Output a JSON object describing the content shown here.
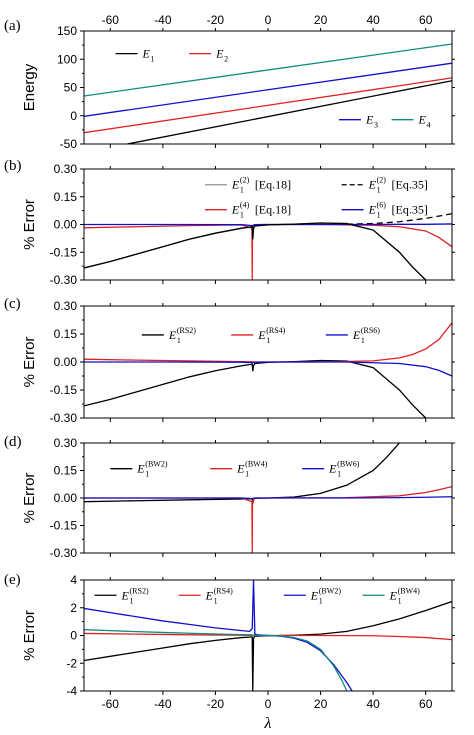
{
  "figure": {
    "xlabel": "λ"
  },
  "chart_data": [
    {
      "type": "line",
      "panel_label": "(a)",
      "ylabel": "Energy",
      "xlim": [
        -70,
        70
      ],
      "ylim": [
        -50,
        150
      ],
      "x_ticks": [
        -60,
        -40,
        -20,
        0,
        20,
        40,
        60
      ],
      "y_ticks": [
        -50,
        0,
        50,
        100,
        150
      ],
      "x_ticks_top": true,
      "x_ticks_bottom": false,
      "series": [
        {
          "name": "E",
          "sub": "1",
          "color": "#000000",
          "dash": false,
          "x": [
            -70,
            70
          ],
          "y": [
            -65,
            62
          ]
        },
        {
          "name": "E",
          "sub": "2",
          "color": "#e02020",
          "dash": false,
          "x": [
            -70,
            70
          ],
          "y": [
            -30,
            67
          ]
        },
        {
          "name": "E",
          "sub": "3",
          "color": "#1010cc",
          "dash": false,
          "x": [
            -70,
            70
          ],
          "y": [
            -1,
            93
          ]
        },
        {
          "name": "E",
          "sub": "4",
          "color": "#108a80",
          "dash": false,
          "x": [
            -70,
            70
          ],
          "y": [
            35,
            127
          ]
        }
      ],
      "legend": [
        {
          "series": 0,
          "x": -58,
          "y": 110
        },
        {
          "series": 1,
          "x": -30,
          "y": 110
        },
        {
          "series": 2,
          "x": 27,
          "y": -7
        },
        {
          "series": 3,
          "x": 47,
          "y": -7
        }
      ]
    },
    {
      "type": "line",
      "panel_label": "(b)",
      "ylabel": "% Error",
      "xlim": [
        -70,
        70
      ],
      "ylim": [
        -0.3,
        0.3
      ],
      "y_ticks": [
        -0.3,
        -0.15,
        0.0,
        0.15,
        0.3
      ],
      "y_tick_labels": [
        "-0.30",
        "-0.15",
        "0.00",
        "0.15",
        "0.30"
      ],
      "x_ticks_bottom": false,
      "series": [
        {
          "name": "E",
          "sub": "1",
          "sup": "(2)",
          "tag": "[Eq.18]",
          "color": "#909090",
          "dash": false,
          "x": [
            -70,
            -60,
            -50,
            -40,
            -30,
            -20,
            -10,
            -6,
            -5.8,
            -5.5,
            -5,
            0,
            10,
            20,
            30,
            40,
            50,
            55,
            60
          ],
          "y": [
            -0.235,
            -0.2,
            -0.16,
            -0.12,
            -0.08,
            -0.047,
            -0.02,
            -0.012,
            -0.08,
            -0.02,
            -0.008,
            -0.002,
            0.002,
            0.008,
            0.005,
            -0.03,
            -0.15,
            -0.23,
            -0.3
          ]
        },
        {
          "name": "E",
          "sub": "1",
          "sup": "(2)",
          "tag": "[Eq.35]",
          "color": "#000000",
          "dash": true,
          "x": [
            30,
            40,
            50,
            60,
            70
          ],
          "y": [
            0.002,
            0.005,
            0.015,
            0.033,
            0.058
          ]
        },
        {
          "name": "E",
          "sub": "1",
          "sup": "(4)",
          "tag": "[Eq.18]",
          "color": "#e02020",
          "dash": false,
          "x": [
            -70,
            -50,
            -30,
            -10,
            -6.1,
            -6,
            -5.9,
            -5,
            0,
            20,
            40,
            50,
            60,
            65,
            70
          ],
          "y": [
            -0.018,
            -0.012,
            -0.006,
            -0.002,
            -0.02,
            -0.3,
            -0.02,
            -0.001,
            0,
            0,
            -0.004,
            -0.012,
            -0.035,
            -0.07,
            -0.12
          ]
        },
        {
          "name": "E",
          "sub": "1",
          "sup": "(6)",
          "tag": "[Eq.35]",
          "color": "#1010cc",
          "dash": false,
          "x": [
            -70,
            -40,
            -10,
            -6,
            -5,
            0,
            30,
            50,
            60,
            70
          ],
          "y": [
            0.0,
            0.0,
            -0.001,
            -0.006,
            -0.001,
            0,
            0,
            0.001,
            0.001,
            0.003
          ]
        },
        {
          "name": "E",
          "sub": "1",
          "sup": "",
          "tag": "",
          "color": "#000000",
          "dash": false,
          "x": [
            -70,
            -60,
            -50,
            -40,
            -30,
            -20,
            -10,
            -6,
            -5.8,
            -5.5,
            -5,
            0,
            10,
            20,
            30,
            40,
            50,
            55,
            60
          ],
          "y": [
            -0.235,
            -0.2,
            -0.16,
            -0.12,
            -0.08,
            -0.047,
            -0.02,
            -0.012,
            -0.08,
            -0.02,
            -0.008,
            -0.002,
            0.002,
            0.008,
            0.005,
            -0.03,
            -0.15,
            -0.23,
            -0.3
          ]
        }
      ],
      "legend": [
        {
          "series": 0,
          "x": -24,
          "y": 0.215
        },
        {
          "series": 1,
          "x": 28,
          "y": 0.215
        },
        {
          "series": 2,
          "x": -24,
          "y": 0.08
        },
        {
          "series": 3,
          "x": 28,
          "y": 0.08
        }
      ]
    },
    {
      "type": "line",
      "panel_label": "(c)",
      "ylabel": "% Error",
      "xlim": [
        -70,
        70
      ],
      "ylim": [
        -0.3,
        0.3
      ],
      "y_ticks": [
        -0.3,
        -0.15,
        0.0,
        0.15,
        0.3
      ],
      "y_tick_labels": [
        "-0.30",
        "-0.15",
        "0.00",
        "0.15",
        "0.30"
      ],
      "x_ticks_bottom": false,
      "series": [
        {
          "name": "E",
          "sub": "1",
          "sup": "(RS2)",
          "color": "#000000",
          "dash": false,
          "x": [
            -70,
            -60,
            -50,
            -40,
            -30,
            -20,
            -10,
            -6,
            -5.8,
            -5.5,
            -5,
            0,
            10,
            20,
            30,
            40,
            50,
            55,
            60
          ],
          "y": [
            -0.235,
            -0.2,
            -0.16,
            -0.12,
            -0.08,
            -0.047,
            -0.02,
            -0.012,
            -0.05,
            -0.02,
            -0.008,
            -0.002,
            0.002,
            0.008,
            0.005,
            -0.03,
            -0.15,
            -0.23,
            -0.3
          ]
        },
        {
          "name": "E",
          "sub": "1",
          "sup": "(RS4)",
          "color": "#e02020",
          "dash": false,
          "x": [
            -70,
            -50,
            -30,
            -10,
            -6,
            -5,
            0,
            20,
            40,
            50,
            55,
            60,
            65,
            70
          ],
          "y": [
            0.015,
            0.01,
            0.006,
            0.002,
            0.001,
            0,
            0,
            0,
            0.006,
            0.022,
            0.04,
            0.07,
            0.12,
            0.21
          ]
        },
        {
          "name": "E",
          "sub": "1",
          "sup": "(RS6)",
          "color": "#1010cc",
          "dash": false,
          "x": [
            -70,
            -40,
            -10,
            -6,
            -5,
            0,
            30,
            50,
            60,
            65,
            70
          ],
          "y": [
            0.0,
            0.0,
            -0.001,
            -0.004,
            -0.001,
            0,
            0,
            -0.008,
            -0.025,
            -0.045,
            -0.075
          ]
        }
      ],
      "legend": [
        {
          "series": 0,
          "x": -48,
          "y": 0.145
        },
        {
          "series": 1,
          "x": -14,
          "y": 0.145
        },
        {
          "series": 2,
          "x": 22,
          "y": 0.145
        }
      ]
    },
    {
      "type": "line",
      "panel_label": "(d)",
      "ylabel": "% Error",
      "xlim": [
        -70,
        70
      ],
      "ylim": [
        -0.3,
        0.3
      ],
      "y_ticks": [
        -0.3,
        -0.15,
        0.0,
        0.15,
        0.3
      ],
      "y_tick_labels": [
        "-0.30",
        "-0.15",
        "0.00",
        "0.15",
        "0.30"
      ],
      "x_ticks_bottom": false,
      "series": [
        {
          "name": "E",
          "sub": "1",
          "sup": "(BW2)",
          "color": "#000000",
          "dash": false,
          "x": [
            -70,
            -50,
            -30,
            -10,
            -6,
            -5.8,
            -5.5,
            -5,
            0,
            10,
            20,
            30,
            40,
            45,
            50
          ],
          "y": [
            -0.02,
            -0.015,
            -0.01,
            -0.005,
            -0.004,
            -0.03,
            -0.01,
            -0.002,
            0,
            0.005,
            0.025,
            0.07,
            0.15,
            0.22,
            0.3
          ]
        },
        {
          "name": "E",
          "sub": "1",
          "sup": "(BW4)",
          "color": "#e02020",
          "dash": false,
          "x": [
            -70,
            -40,
            -10,
            -6.1,
            -6,
            -5.9,
            -5,
            0,
            30,
            50,
            60,
            65,
            70
          ],
          "y": [
            0.0,
            0.0,
            0.0,
            -0.02,
            -0.3,
            -0.02,
            0,
            0,
            0.002,
            0.012,
            0.03,
            0.045,
            0.062
          ]
        },
        {
          "name": "E",
          "sub": "1",
          "sup": "(BW6)",
          "color": "#1010cc",
          "dash": false,
          "x": [
            -70,
            -40,
            -10,
            -6,
            -5,
            0,
            30,
            50,
            60,
            70
          ],
          "y": [
            0.0,
            0.0,
            0.0,
            -0.003,
            0,
            0,
            0,
            0.002,
            0.004,
            0.007
          ]
        }
      ],
      "legend": [
        {
          "series": 0,
          "x": -60,
          "y": 0.16
        },
        {
          "series": 1,
          "x": -22,
          "y": 0.16
        },
        {
          "series": 2,
          "x": 13,
          "y": 0.16
        }
      ]
    },
    {
      "type": "line",
      "panel_label": "(e)",
      "ylabel": "% Error",
      "xlim": [
        -70,
        70
      ],
      "ylim": [
        -4,
        4
      ],
      "x_ticks": [
        -60,
        -40,
        -20,
        0,
        20,
        40,
        60
      ],
      "y_ticks": [
        -4,
        -2,
        0,
        2,
        4
      ],
      "x_ticks_bottom": true,
      "series": [
        {
          "name": "E",
          "sub": "1",
          "sup": "(RS2)",
          "color": "#000000",
          "dash": false,
          "x": [
            -70,
            -60,
            -50,
            -40,
            -30,
            -20,
            -10,
            -6,
            -5.8,
            -5.5,
            -5,
            0,
            10,
            20,
            30,
            40,
            50,
            60,
            70
          ],
          "y": [
            -1.8,
            -1.5,
            -1.2,
            -0.9,
            -0.6,
            -0.35,
            -0.15,
            -0.1,
            -4,
            -0.2,
            -0.05,
            -0.02,
            0.02,
            0.1,
            0.3,
            0.7,
            1.2,
            1.8,
            2.45
          ]
        },
        {
          "name": "E",
          "sub": "1",
          "sup": "(RS4)",
          "color": "#e02020",
          "dash": false,
          "x": [
            -70,
            -50,
            -30,
            -10,
            -6,
            -5,
            0,
            20,
            40,
            50,
            60,
            70
          ],
          "y": [
            0.15,
            0.1,
            0.05,
            0.02,
            0.01,
            0,
            0,
            0,
            -0.02,
            -0.07,
            -0.15,
            -0.3
          ]
        },
        {
          "name": "E",
          "sub": "1",
          "sup": "(BW2)",
          "color": "#1010cc",
          "dash": false,
          "x": [
            -70,
            -60,
            -50,
            -40,
            -30,
            -20,
            -10,
            -7,
            -6,
            -5.5,
            -5,
            -4,
            0,
            5,
            10,
            15,
            20,
            25,
            30,
            32
          ],
          "y": [
            1.95,
            1.65,
            1.35,
            1.05,
            0.8,
            0.55,
            0.35,
            0.3,
            0.5,
            4,
            0.1,
            0.05,
            0.0,
            -0.05,
            -0.2,
            -0.5,
            -1.1,
            -2.1,
            -3.4,
            -4
          ]
        },
        {
          "name": "E",
          "sub": "1",
          "sup": "(BW4)",
          "color": "#108a80",
          "dash": false,
          "x": [
            -70,
            -60,
            -50,
            -40,
            -30,
            -20,
            -10,
            -6,
            -5,
            0,
            5,
            10,
            15,
            20,
            25,
            28,
            30
          ],
          "y": [
            0.42,
            0.35,
            0.28,
            0.22,
            0.16,
            0.11,
            0.06,
            0.04,
            0.02,
            0.0,
            -0.03,
            -0.15,
            -0.4,
            -1.0,
            -2.2,
            -3.2,
            -4
          ]
        }
      ],
      "legend": [
        {
          "series": 0,
          "x": -66,
          "y": 2.9
        },
        {
          "series": 1,
          "x": -34,
          "y": 2.9
        },
        {
          "series": 2,
          "x": 6,
          "y": 2.9
        },
        {
          "series": 3,
          "x": 36,
          "y": 2.9
        }
      ]
    }
  ]
}
